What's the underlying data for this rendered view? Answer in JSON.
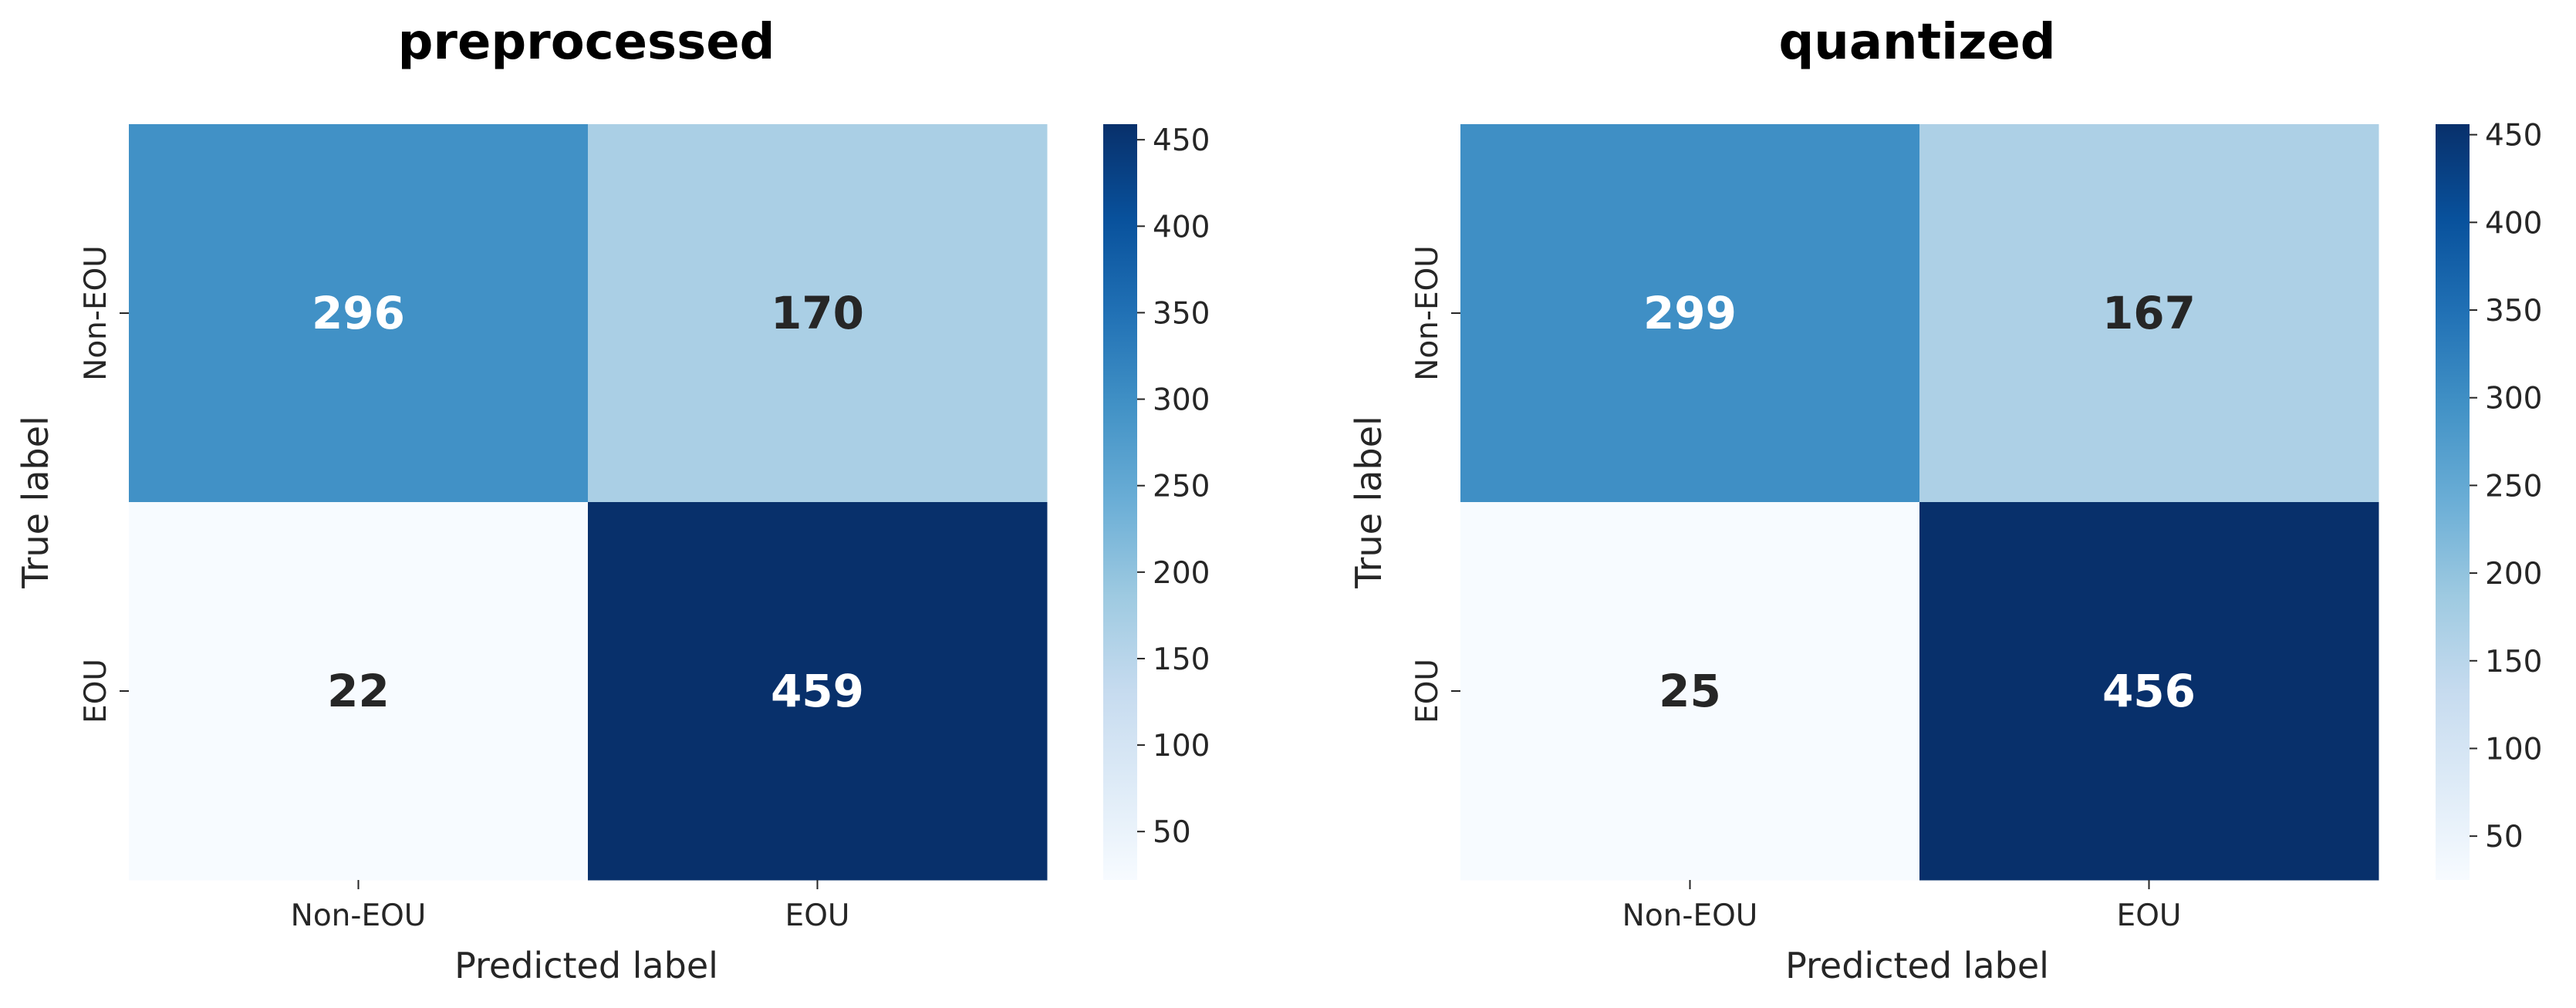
{
  "chart_data": [
    {
      "type": "heatmap",
      "title": "preprocessed",
      "xlabel": "Predicted label",
      "ylabel": "True label",
      "x_categories": [
        "Non-EOU",
        "EOU"
      ],
      "y_categories": [
        "Non-EOU",
        "EOU"
      ],
      "values": [
        [
          296,
          170
        ],
        [
          22,
          459
        ]
      ],
      "colormap": "Blues",
      "color_range": [
        22,
        459
      ],
      "colorbar_ticks": [
        50,
        100,
        150,
        200,
        250,
        300,
        350,
        400,
        450
      ]
    },
    {
      "type": "heatmap",
      "title": "quantized",
      "xlabel": "Predicted label",
      "ylabel": "True label",
      "x_categories": [
        "Non-EOU",
        "EOU"
      ],
      "y_categories": [
        "Non-EOU",
        "EOU"
      ],
      "values": [
        [
          299,
          167
        ],
        [
          25,
          456
        ]
      ],
      "colormap": "Blues",
      "color_range": [
        25,
        456
      ],
      "colorbar_ticks": [
        50,
        100,
        150,
        200,
        250,
        300,
        350,
        400,
        450
      ]
    }
  ],
  "colors": {
    "annotation_dark": "#262626",
    "annotation_light": "#ffffff",
    "tick": "#262626",
    "colormap_stops": [
      "#f7fbff",
      "#deebf7",
      "#c6dbef",
      "#9ecae1",
      "#6baed6",
      "#4292c6",
      "#2171b5",
      "#08519c",
      "#08306b"
    ]
  }
}
